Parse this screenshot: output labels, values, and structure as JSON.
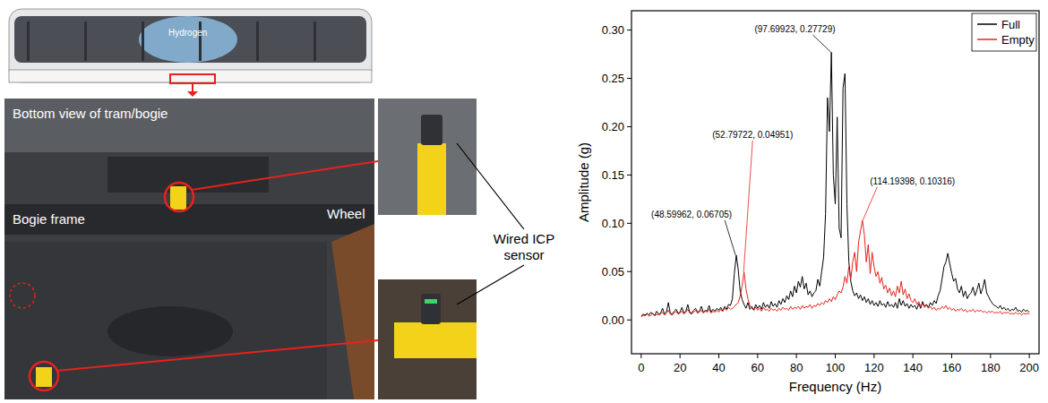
{
  "photo_panel": {
    "tram_text": "Hydrogen",
    "labels": {
      "bottom_view": "Bottom view of tram/bogie",
      "bogie_frame": "Bogie frame",
      "wheel": "Wheel",
      "sensor": "Wired ICP sensor"
    }
  },
  "chart_data": {
    "type": "line",
    "x_label": "Frequency (Hz)",
    "y_label": "Amplitude (g)",
    "x": [
      0,
      1,
      2,
      3,
      4,
      5,
      6,
      7,
      8,
      9,
      10,
      11,
      12,
      13,
      14,
      15,
      16,
      17,
      18,
      19,
      20,
      21,
      22,
      23,
      24,
      25,
      26,
      27,
      28,
      29,
      30,
      31,
      32,
      33,
      34,
      35,
      36,
      37,
      38,
      39,
      40,
      41,
      42,
      43,
      44,
      45,
      46,
      47,
      48,
      49,
      50,
      51,
      52,
      53,
      54,
      55,
      56,
      57,
      58,
      59,
      60,
      61,
      62,
      63,
      64,
      65,
      66,
      67,
      68,
      69,
      70,
      71,
      72,
      73,
      74,
      75,
      76,
      77,
      78,
      79,
      80,
      81,
      82,
      83,
      84,
      85,
      86,
      87,
      88,
      89,
      90,
      91,
      92,
      93,
      94,
      95,
      96,
      97,
      98,
      99,
      100,
      101,
      102,
      103,
      104,
      105,
      106,
      107,
      108,
      109,
      110,
      111,
      112,
      113,
      114,
      115,
      116,
      117,
      118,
      119,
      120,
      121,
      122,
      123,
      124,
      125,
      126,
      127,
      128,
      129,
      130,
      131,
      132,
      133,
      134,
      135,
      136,
      137,
      138,
      139,
      140,
      141,
      142,
      143,
      144,
      145,
      146,
      147,
      148,
      149,
      150,
      151,
      152,
      153,
      154,
      155,
      156,
      157,
      158,
      159,
      160,
      161,
      162,
      163,
      164,
      165,
      166,
      167,
      168,
      169,
      170,
      171,
      172,
      173,
      174,
      175,
      176,
      177,
      178,
      179,
      180,
      181,
      182,
      183,
      184,
      185,
      186,
      187,
      188,
      189,
      190,
      191,
      192,
      193,
      194,
      195,
      196,
      197,
      198,
      199,
      200
    ],
    "series": [
      {
        "name": "Full",
        "color": "#000000",
        "values": [
          0.004,
          0.006,
          0.005,
          0.007,
          0.005,
          0.008,
          0.006,
          0.005,
          0.009,
          0.006,
          0.007,
          0.012,
          0.006,
          0.008,
          0.018,
          0.007,
          0.006,
          0.009,
          0.011,
          0.007,
          0.008,
          0.013,
          0.007,
          0.009,
          0.016,
          0.008,
          0.007,
          0.01,
          0.012,
          0.008,
          0.009,
          0.014,
          0.008,
          0.01,
          0.009,
          0.015,
          0.008,
          0.011,
          0.009,
          0.012,
          0.01,
          0.013,
          0.009,
          0.014,
          0.011,
          0.016,
          0.015,
          0.022,
          0.048,
          0.067,
          0.052,
          0.03,
          0.021,
          0.016,
          0.012,
          0.018,
          0.011,
          0.014,
          0.01,
          0.016,
          0.012,
          0.015,
          0.011,
          0.018,
          0.013,
          0.016,
          0.012,
          0.019,
          0.014,
          0.017,
          0.013,
          0.02,
          0.016,
          0.022,
          0.018,
          0.025,
          0.021,
          0.03,
          0.024,
          0.035,
          0.028,
          0.04,
          0.034,
          0.045,
          0.032,
          0.038,
          0.026,
          0.03,
          0.024,
          0.028,
          0.03,
          0.042,
          0.035,
          0.05,
          0.065,
          0.11,
          0.23,
          0.195,
          0.277,
          0.15,
          0.12,
          0.21,
          0.095,
          0.085,
          0.24,
          0.255,
          0.12,
          0.06,
          0.04,
          0.03,
          0.025,
          0.028,
          0.022,
          0.026,
          0.02,
          0.024,
          0.018,
          0.022,
          0.016,
          0.02,
          0.015,
          0.018,
          0.014,
          0.02,
          0.015,
          0.017,
          0.013,
          0.019,
          0.014,
          0.016,
          0.013,
          0.018,
          0.012,
          0.022,
          0.015,
          0.02,
          0.014,
          0.017,
          0.012,
          0.016,
          0.013,
          0.015,
          0.011,
          0.017,
          0.012,
          0.019,
          0.014,
          0.016,
          0.013,
          0.018,
          0.015,
          0.02,
          0.017,
          0.025,
          0.03,
          0.042,
          0.055,
          0.06,
          0.069,
          0.058,
          0.048,
          0.04,
          0.043,
          0.032,
          0.028,
          0.035,
          0.024,
          0.03,
          0.022,
          0.026,
          0.028,
          0.034,
          0.025,
          0.031,
          0.038,
          0.027,
          0.033,
          0.042,
          0.028,
          0.024,
          0.02,
          0.017,
          0.015,
          0.014,
          0.012,
          0.015,
          0.011,
          0.013,
          0.01,
          0.012,
          0.009,
          0.011,
          0.01,
          0.013,
          0.009,
          0.01,
          0.008,
          0.011,
          0.009,
          0.01,
          0.008
        ]
      },
      {
        "name": "Empty",
        "color": "#e8211c",
        "values": [
          0.003,
          0.005,
          0.004,
          0.006,
          0.004,
          0.005,
          0.007,
          0.004,
          0.006,
          0.005,
          0.006,
          0.008,
          0.005,
          0.007,
          0.01,
          0.006,
          0.005,
          0.007,
          0.009,
          0.006,
          0.007,
          0.009,
          0.006,
          0.008,
          0.011,
          0.007,
          0.006,
          0.008,
          0.01,
          0.007,
          0.008,
          0.01,
          0.007,
          0.009,
          0.008,
          0.011,
          0.007,
          0.009,
          0.008,
          0.01,
          0.008,
          0.011,
          0.009,
          0.012,
          0.01,
          0.013,
          0.011,
          0.012,
          0.014,
          0.016,
          0.018,
          0.025,
          0.035,
          0.0495,
          0.032,
          0.022,
          0.015,
          0.012,
          0.01,
          0.013,
          0.01,
          0.012,
          0.009,
          0.013,
          0.01,
          0.011,
          0.009,
          0.012,
          0.01,
          0.011,
          0.009,
          0.012,
          0.01,
          0.013,
          0.011,
          0.012,
          0.01,
          0.014,
          0.011,
          0.013,
          0.012,
          0.014,
          0.011,
          0.015,
          0.012,
          0.014,
          0.013,
          0.016,
          0.012,
          0.015,
          0.014,
          0.017,
          0.015,
          0.018,
          0.016,
          0.02,
          0.018,
          0.022,
          0.019,
          0.024,
          0.021,
          0.026,
          0.03,
          0.028,
          0.034,
          0.045,
          0.038,
          0.055,
          0.042,
          0.06,
          0.07,
          0.05,
          0.08,
          0.092,
          0.103,
          0.088,
          0.06,
          0.078,
          0.048,
          0.07,
          0.055,
          0.045,
          0.05,
          0.038,
          0.044,
          0.032,
          0.036,
          0.028,
          0.033,
          0.025,
          0.03,
          0.024,
          0.035,
          0.028,
          0.04,
          0.026,
          0.032,
          0.022,
          0.027,
          0.02,
          0.018,
          0.022,
          0.016,
          0.019,
          0.014,
          0.017,
          0.013,
          0.015,
          0.012,
          0.014,
          0.011,
          0.013,
          0.01,
          0.012,
          0.011,
          0.014,
          0.012,
          0.015,
          0.011,
          0.013,
          0.01,
          0.012,
          0.009,
          0.011,
          0.01,
          0.012,
          0.009,
          0.011,
          0.008,
          0.01,
          0.009,
          0.011,
          0.008,
          0.01,
          0.009,
          0.01,
          0.008,
          0.009,
          0.007,
          0.009,
          0.008,
          0.009,
          0.007,
          0.008,
          0.007,
          0.009,
          0.006,
          0.008,
          0.007,
          0.008,
          0.006,
          0.007,
          0.006,
          0.008,
          0.006,
          0.007,
          0.005,
          0.007,
          0.006,
          0.007,
          0.006
        ]
      }
    ],
    "xlim": [
      -5,
      205
    ],
    "ylim": [
      -0.035,
      0.32
    ],
    "xticks": [
      0,
      20,
      40,
      60,
      80,
      100,
      120,
      140,
      160,
      180,
      200
    ],
    "yticks": [
      {
        "value": 0,
        "label": "0.00"
      },
      {
        "value": 0.05,
        "label": "0.05"
      },
      {
        "value": 0.1,
        "label": "0.10"
      },
      {
        "value": 0.15,
        "label": "0.15"
      },
      {
        "value": 0.2,
        "label": "0.20"
      },
      {
        "value": 0.25,
        "label": "0.25"
      },
      {
        "value": 0.3,
        "label": "0.30"
      }
    ],
    "grid": false,
    "legend": "upper right",
    "annotations": [
      {
        "x": 97.69923,
        "y": 0.27729,
        "text": "(97.69923, 0.27729)",
        "color": "#000000"
      },
      {
        "x": 48.59962,
        "y": 0.06705,
        "text": "(48.59962, 0.06705)",
        "color": "#000000"
      },
      {
        "x": 52.79722,
        "y": 0.04951,
        "text": "(52.79722, 0.04951)",
        "color": "#e8211c"
      },
      {
        "x": 114.19398,
        "y": 0.10316,
        "text": "(114.19398, 0.10316)",
        "color": "#e8211c"
      }
    ]
  }
}
